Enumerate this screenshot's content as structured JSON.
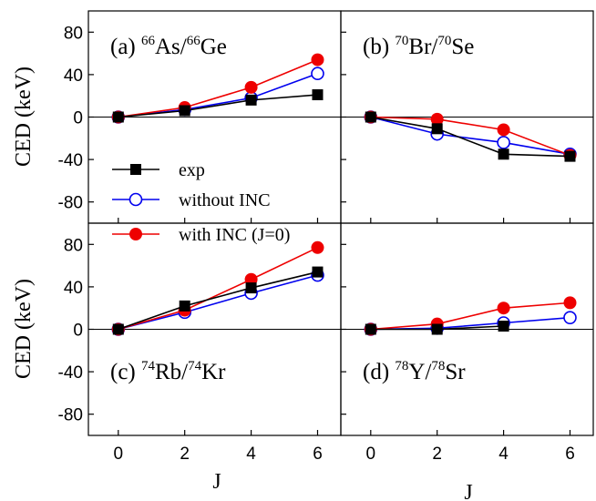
{
  "chart_data": [
    {
      "panel": "(a)",
      "type": "line",
      "title": {
        "prefix": "(a) ",
        "a1": "66",
        "e1": "As/",
        "a2": "66",
        "e2": "Ge"
      },
      "x": [
        0,
        2,
        4,
        6
      ],
      "series": [
        {
          "name": "exp",
          "values": [
            0,
            6,
            16,
            21
          ]
        },
        {
          "name": "without INC",
          "values": [
            0,
            7,
            18,
            41
          ]
        },
        {
          "name": "with INC (J=0)",
          "values": [
            0,
            9,
            28,
            54
          ]
        }
      ]
    },
    {
      "panel": "(b)",
      "type": "line",
      "title": {
        "prefix": "(b) ",
        "a1": "70",
        "e1": "Br/",
        "a2": "70",
        "e2": "Se"
      },
      "x": [
        0,
        2,
        4,
        6
      ],
      "series": [
        {
          "name": "exp",
          "values": [
            0,
            -11,
            -35,
            -37
          ]
        },
        {
          "name": "without INC",
          "values": [
            0,
            -16,
            -24,
            -35
          ]
        },
        {
          "name": "with INC (J=0)",
          "values": [
            0,
            -2,
            -12,
            -36
          ]
        }
      ]
    },
    {
      "panel": "(c)",
      "type": "line",
      "title": {
        "prefix": "(c) ",
        "a1": "74",
        "e1": "Rb/",
        "a2": "74",
        "e2": "Kr"
      },
      "x": [
        0,
        2,
        4,
        6
      ],
      "series": [
        {
          "name": "exp",
          "values": [
            0,
            22,
            39,
            54
          ]
        },
        {
          "name": "without INC",
          "values": [
            0,
            16,
            34,
            51
          ]
        },
        {
          "name": "with INC (J=0)",
          "values": [
            0,
            18,
            47,
            77
          ]
        }
      ]
    },
    {
      "panel": "(d)",
      "type": "line",
      "title": {
        "prefix": "(d) ",
        "a1": "78",
        "e1": "Y/",
        "a2": "78",
        "e2": "Sr"
      },
      "x": [
        0,
        2,
        4,
        6
      ],
      "series": [
        {
          "name": "exp",
          "values": [
            0,
            0,
            3,
            null
          ]
        },
        {
          "name": "without INC",
          "values": [
            0,
            1,
            6,
            11
          ]
        },
        {
          "name": "with INC (J=0)",
          "values": [
            0,
            5,
            20,
            25
          ]
        }
      ]
    }
  ],
  "axes": {
    "ylabel": "CED  (keV)",
    "xlabel": "J",
    "xlim": [
      -0.9,
      6.7
    ],
    "ylim": [
      -100,
      100
    ],
    "yticks": [
      80,
      40,
      0,
      -40,
      -80
    ],
    "xticks": [
      0,
      2,
      4,
      6
    ]
  },
  "legend": {
    "placement": "left, spanning panels (a) and (c)",
    "entries": [
      "exp",
      "without INC",
      "with INC (J=0)"
    ]
  },
  "colors": {
    "exp": "#000000",
    "without INC": "#0000ee",
    "with INC (J=0)": "#ee0000",
    "zero_line": "#000000"
  }
}
